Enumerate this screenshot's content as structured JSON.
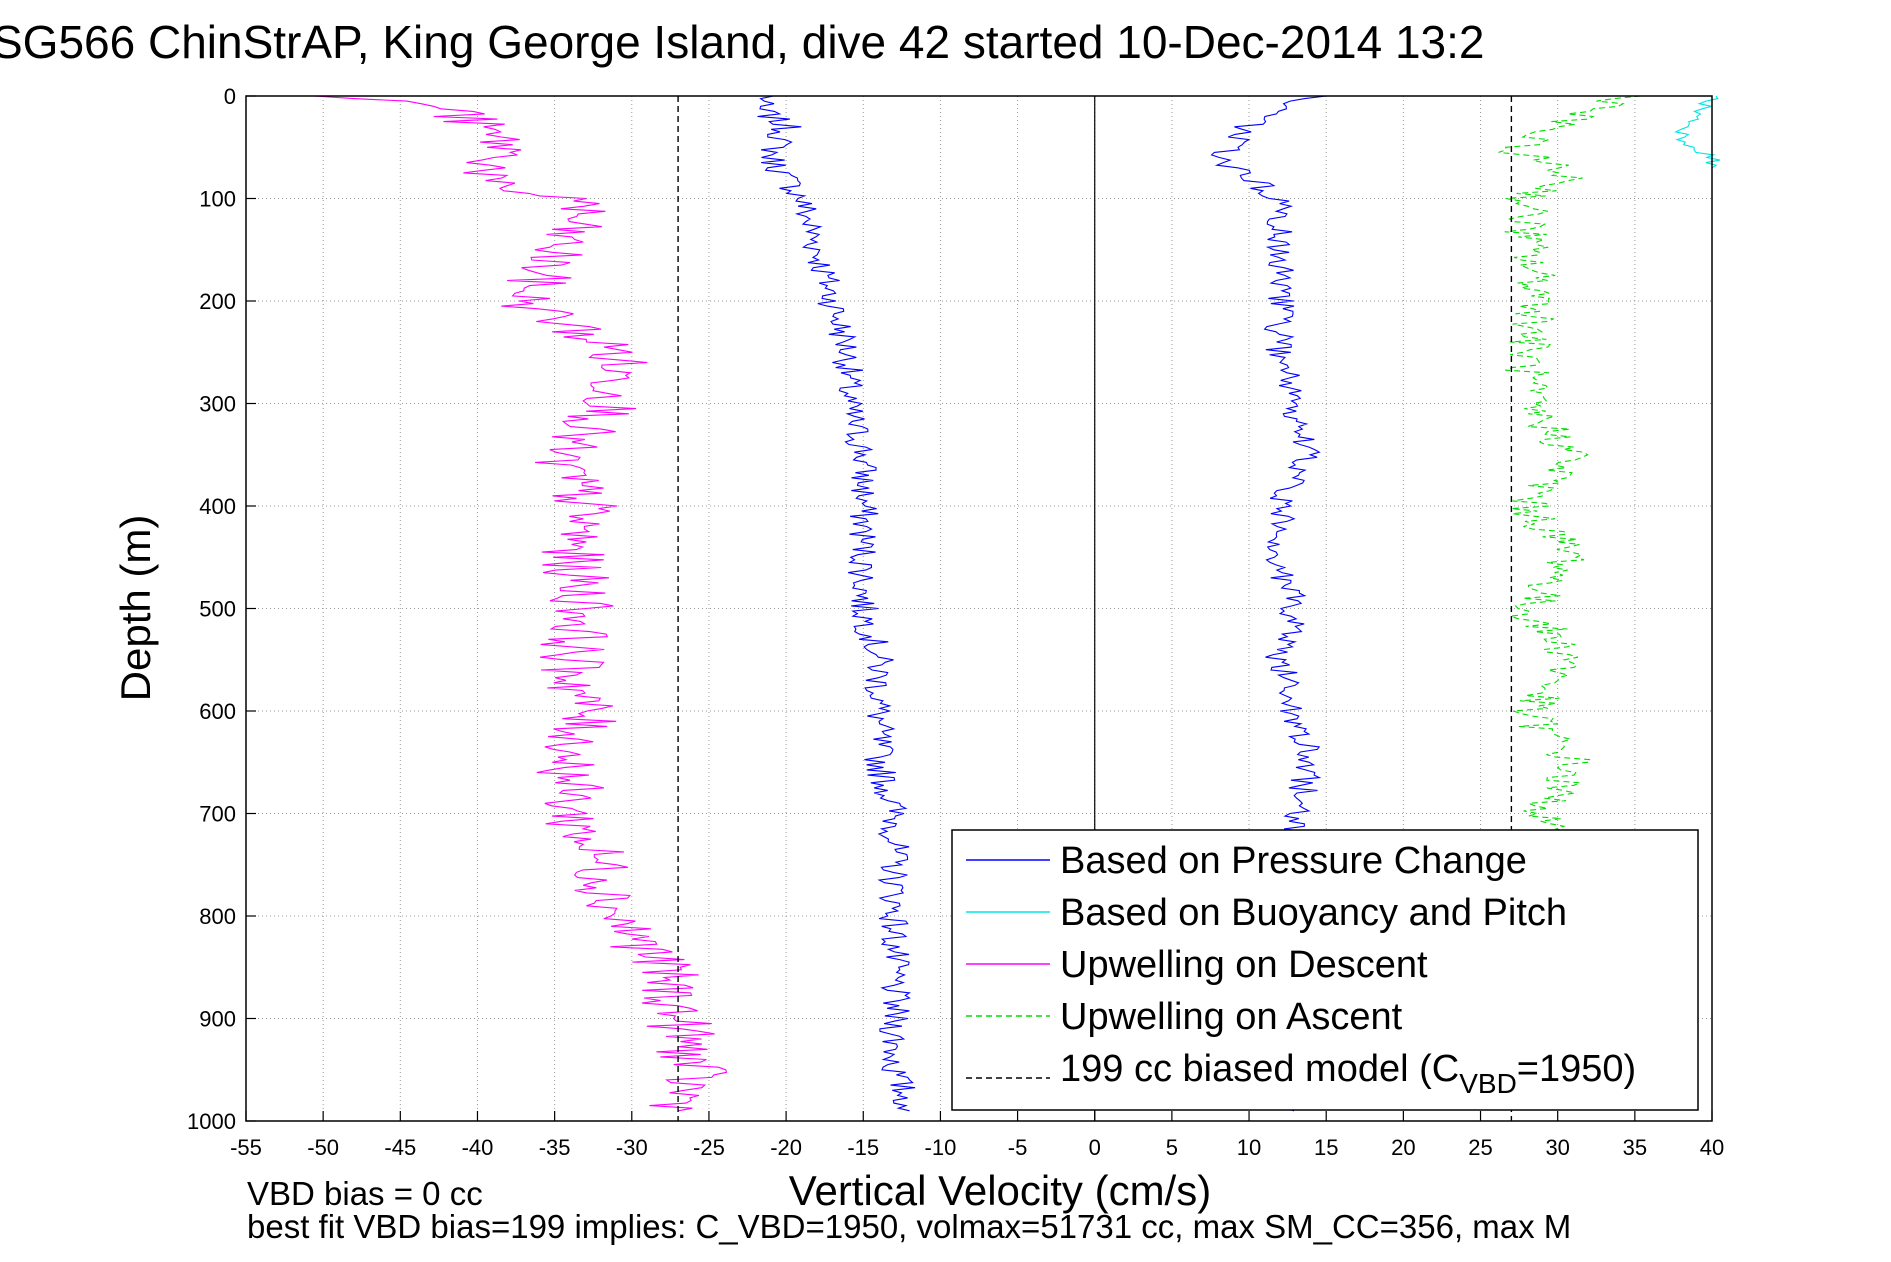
{
  "chart_data": {
    "type": "line",
    "title": "SG566 ChinStrAP, King George Island, dive 42 started 10-Dec-2014 13:2",
    "xlabel": "Vertical Velocity (cm/s)",
    "ylabel": "Depth (m)",
    "xlim": [
      -55,
      40
    ],
    "ylim": [
      1000,
      0
    ],
    "y_reversed": true,
    "grid": true,
    "x_ticks": [
      "-55",
      "-50",
      "-45",
      "-40",
      "-35",
      "-30",
      "-25",
      "-20",
      "-15",
      "-10",
      "-5",
      "0",
      "5",
      "10",
      "15",
      "20",
      "25",
      "30",
      "35",
      "40"
    ],
    "y_ticks": [
      "0",
      "100",
      "200",
      "300",
      "400",
      "500",
      "600",
      "700",
      "800",
      "900",
      "1000"
    ],
    "legend_position": "bottom-right",
    "series": [
      {
        "name": "Based on Pressure Change",
        "color": "#0000ff",
        "style": "solid",
        "depth": [
          0,
          10,
          30,
          60,
          100,
          150,
          200,
          250,
          300,
          350,
          400,
          450,
          500,
          550,
          600,
          650,
          700,
          750,
          800,
          850,
          900,
          950,
          990
        ],
        "values": [
          -21,
          -22,
          -20,
          -21,
          -19,
          -18,
          -17,
          -16,
          -16,
          -15,
          -15,
          -15,
          -15,
          -14,
          -14,
          -14,
          -13,
          -13,
          -13,
          -13,
          -13,
          -13,
          -12
        ],
        "depth_upcast": [
          990,
          950,
          900,
          850,
          800,
          750,
          700,
          650,
          600,
          550,
          500,
          450,
          400,
          350,
          300,
          250,
          200,
          150,
          100,
          60,
          30,
          10,
          0
        ],
        "values_upcast": [
          12,
          13,
          13,
          13,
          12,
          12,
          13,
          14,
          13,
          12,
          13,
          12,
          12,
          14,
          13,
          12,
          12,
          12,
          12,
          8,
          10,
          12,
          15
        ]
      },
      {
        "name": "Based on Buoyancy and Pitch",
        "color": "#00e5e5",
        "style": "solid",
        "depth": [
          0,
          20,
          40,
          50,
          60,
          70
        ],
        "values": [
          40,
          39,
          38,
          39,
          40,
          40
        ]
      },
      {
        "name": "Upwelling on Descent",
        "color": "#ff00ff",
        "style": "solid",
        "depth": [
          0,
          10,
          50,
          90,
          100,
          150,
          200,
          250,
          300,
          350,
          400,
          450,
          500,
          550,
          600,
          650,
          700,
          750,
          800,
          850,
          900,
          950,
          990
        ],
        "values": [
          -50,
          -42,
          -38,
          -40,
          -33,
          -35,
          -37,
          -31,
          -31,
          -35,
          -33,
          -34,
          -33,
          -34,
          -33,
          -34,
          -34,
          -32,
          -31,
          -28,
          -27,
          -26,
          -27
        ]
      },
      {
        "name": "Upwelling on Ascent",
        "color": "#00dd00",
        "style": "dashed",
        "depth": [
          0,
          20,
          50,
          80,
          100,
          150,
          200,
          250,
          300,
          350,
          400,
          450,
          500,
          550,
          600,
          650,
          700,
          750,
          800
        ],
        "values": [
          35,
          31,
          27,
          31,
          28,
          28,
          29,
          28,
          28,
          31,
          28,
          31,
          28,
          31,
          28,
          31,
          29,
          29,
          28
        ]
      },
      {
        "name": "199 cc biased model (C_VBD=1950)",
        "color": "#000000",
        "style": "dashed",
        "constant_x": [
          -27,
          27
        ]
      }
    ],
    "legend": [
      {
        "label": "Based on Pressure Change",
        "color": "#0000ff",
        "dash": ""
      },
      {
        "label": "Based on Buoyancy and Pitch",
        "color": "#00e5e5",
        "dash": ""
      },
      {
        "label": "Upwelling on Descent",
        "color": "#ff00ff",
        "dash": ""
      },
      {
        "label": "Upwelling on Ascent",
        "color": "#00dd00",
        "dash": "6,4"
      },
      {
        "label": "199 cc biased model (C",
        "sub": "VBD",
        "suffix": "=1950)",
        "color": "#000000",
        "dash": "6,4"
      }
    ],
    "annotations": {
      "line1": "VBD bias = 0 cc",
      "line2": "best fit VBD bias=199 implies: C_VBD=1950, volmax=51731 cc, max SM_CC=356, max M"
    }
  }
}
